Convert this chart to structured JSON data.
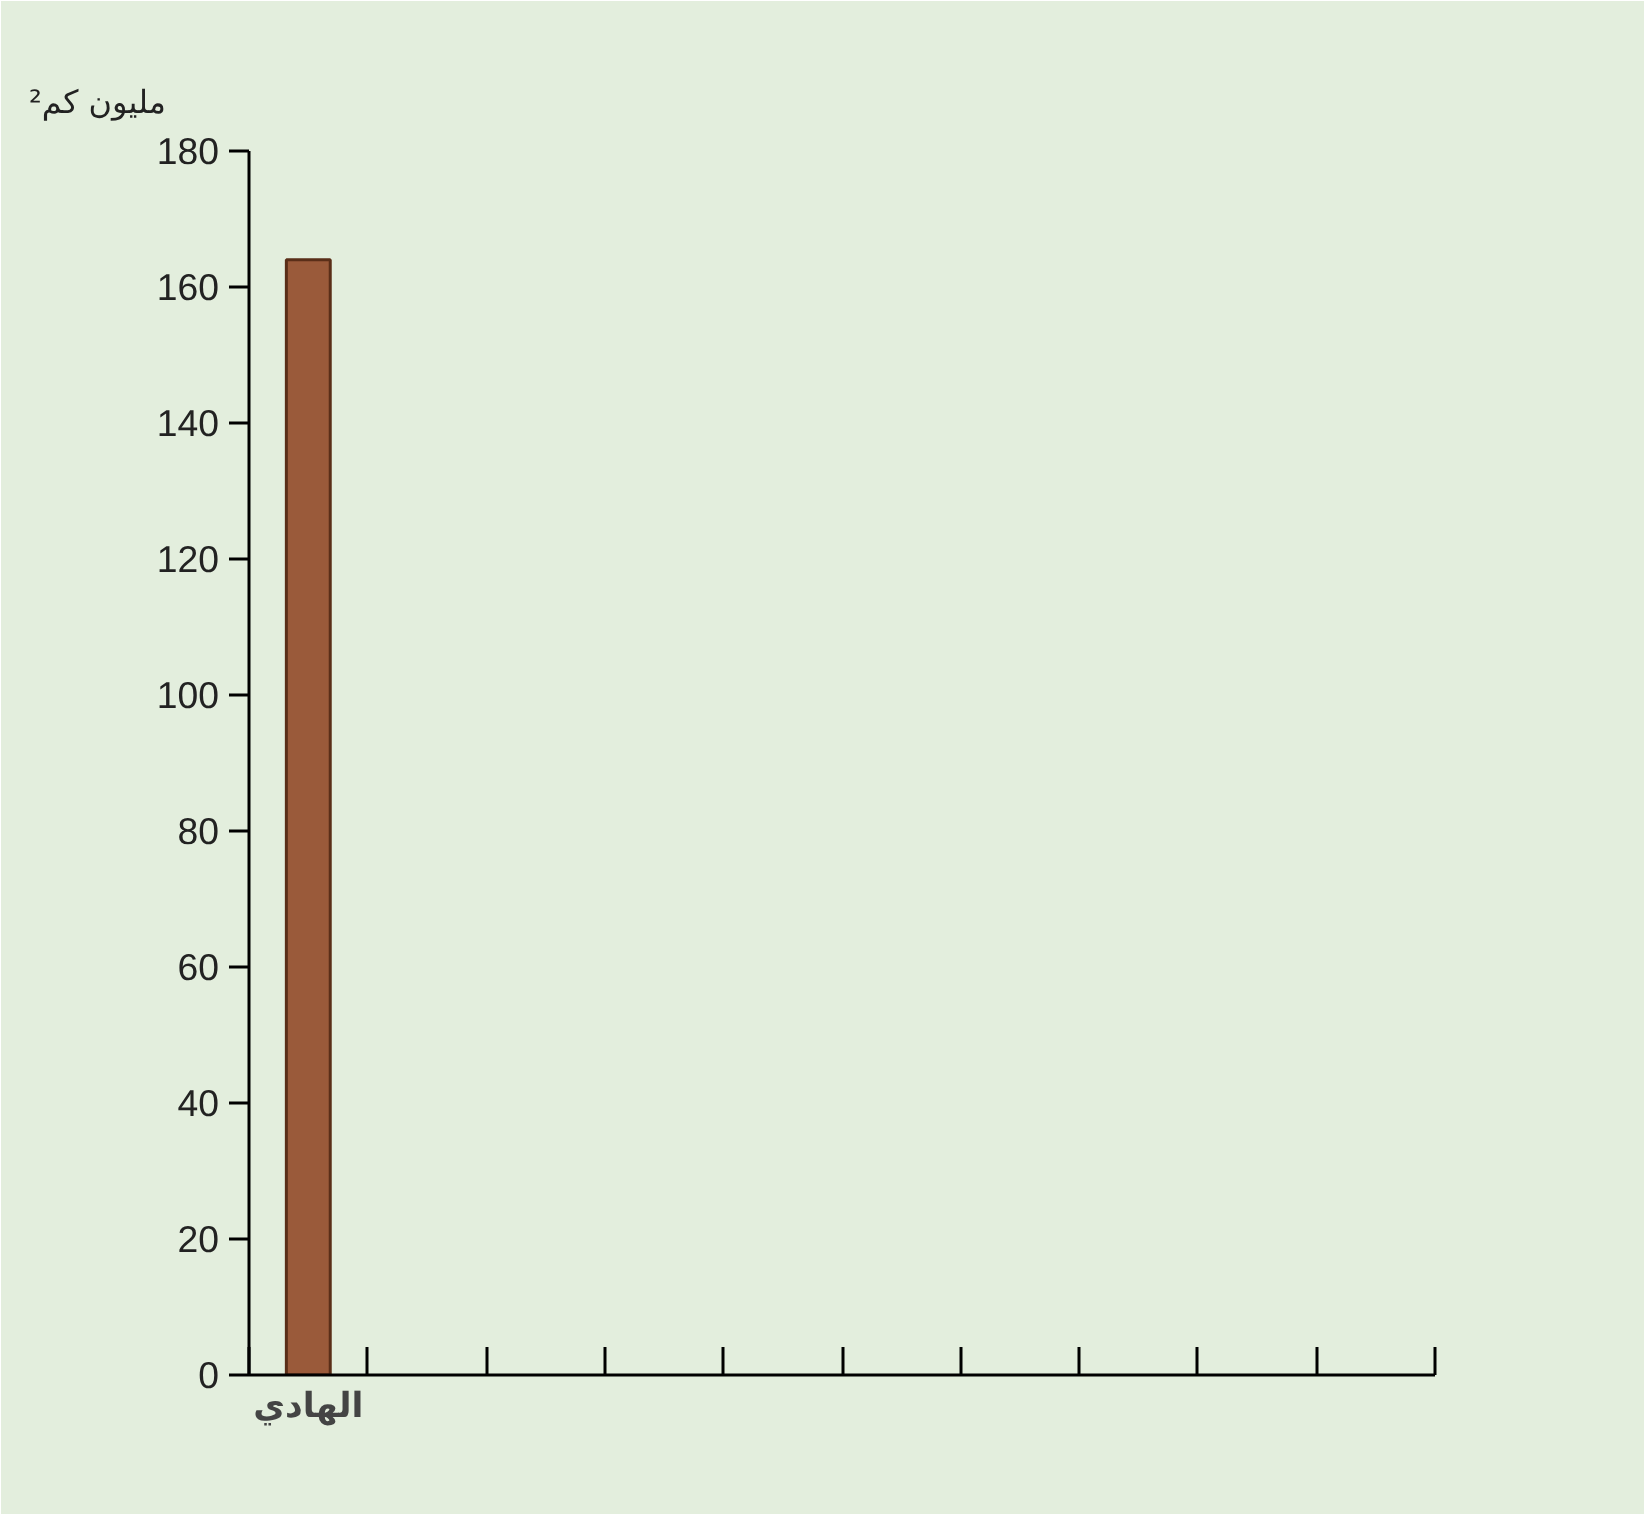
{
  "chart_data": {
    "type": "bar",
    "ylabel": "مليون كم²",
    "categories": [
      "الهادي",
      null,
      null,
      null,
      null,
      null,
      null,
      null,
      null,
      null
    ],
    "values": [
      164,
      null,
      null,
      null,
      null,
      null,
      null,
      null,
      null,
      null
    ],
    "color": "#9a5a3a",
    "ylim": [
      0,
      180
    ],
    "yticks": [
      0,
      20,
      40,
      60,
      80,
      100,
      120,
      140,
      160,
      180
    ],
    "grid": false
  }
}
